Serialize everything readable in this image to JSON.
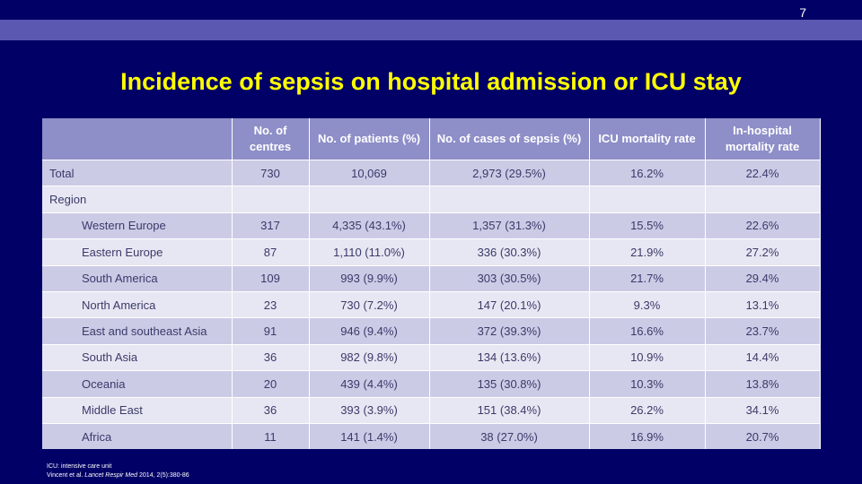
{
  "slide": {
    "number": "7",
    "title": "Incidence of sepsis on hospital admission or ICU stay"
  },
  "table": {
    "headers": [
      "",
      "No. of centres",
      "No. of patients (%)",
      "No. of cases of sepsis (%)",
      "ICU mortality rate",
      "In-hospital mortality rate"
    ],
    "rows": [
      {
        "label": "Total",
        "centres": "730",
        "patients": "10,069",
        "sepsis": "2,973 (29.5%)",
        "icu": "16.2%",
        "hospital": "22.4%"
      },
      {
        "label": "Region",
        "centres": "",
        "patients": "",
        "sepsis": "",
        "icu": "",
        "hospital": ""
      },
      {
        "label": "Western Europe",
        "centres": "317",
        "patients": "4,335 (43.1%)",
        "sepsis": "1,357 (31.3%)",
        "icu": "15.5%",
        "hospital": "22.6%"
      },
      {
        "label": "Eastern Europe",
        "centres": "87",
        "patients": "1,110 (11.0%)",
        "sepsis": "336 (30.3%)",
        "icu": "21.9%",
        "hospital": "27.2%"
      },
      {
        "label": "South America",
        "centres": "109",
        "patients": "993 (9.9%)",
        "sepsis": "303 (30.5%)",
        "icu": "21.7%",
        "hospital": "29.4%"
      },
      {
        "label": "North America",
        "centres": "23",
        "patients": "730 (7.2%)",
        "sepsis": "147 (20.1%)",
        "icu": "9.3%",
        "hospital": "13.1%"
      },
      {
        "label": "East and southeast Asia",
        "centres": "91",
        "patients": "946 (9.4%)",
        "sepsis": "372 (39.3%)",
        "icu": "16.6%",
        "hospital": "23.7%"
      },
      {
        "label": "South Asia",
        "centres": "36",
        "patients": "982 (9.8%)",
        "sepsis": "134 (13.6%)",
        "icu": "10.9%",
        "hospital": "14.4%"
      },
      {
        "label": "Oceania",
        "centres": "20",
        "patients": "439 (4.4%)",
        "sepsis": "135 (30.8%)",
        "icu": "10.3%",
        "hospital": "13.8%"
      },
      {
        "label": "Middle East",
        "centres": "36",
        "patients": "393 (3.9%)",
        "sepsis": "151 (38.4%)",
        "icu": "26.2%",
        "hospital": "34.1%"
      },
      {
        "label": "Africa",
        "centres": "11",
        "patients": "141 (1.4%)",
        "sepsis": "38 (27.0%)",
        "icu": "16.9%",
        "hospital": "20.7%"
      }
    ]
  },
  "footnotes": {
    "abbrev": "ICU: intensive care unit",
    "ref_authors": "Vincent et al.",
    "ref_journal": "Lancet Respir Med",
    "ref_rest": "2014, 2(5):380-86"
  }
}
